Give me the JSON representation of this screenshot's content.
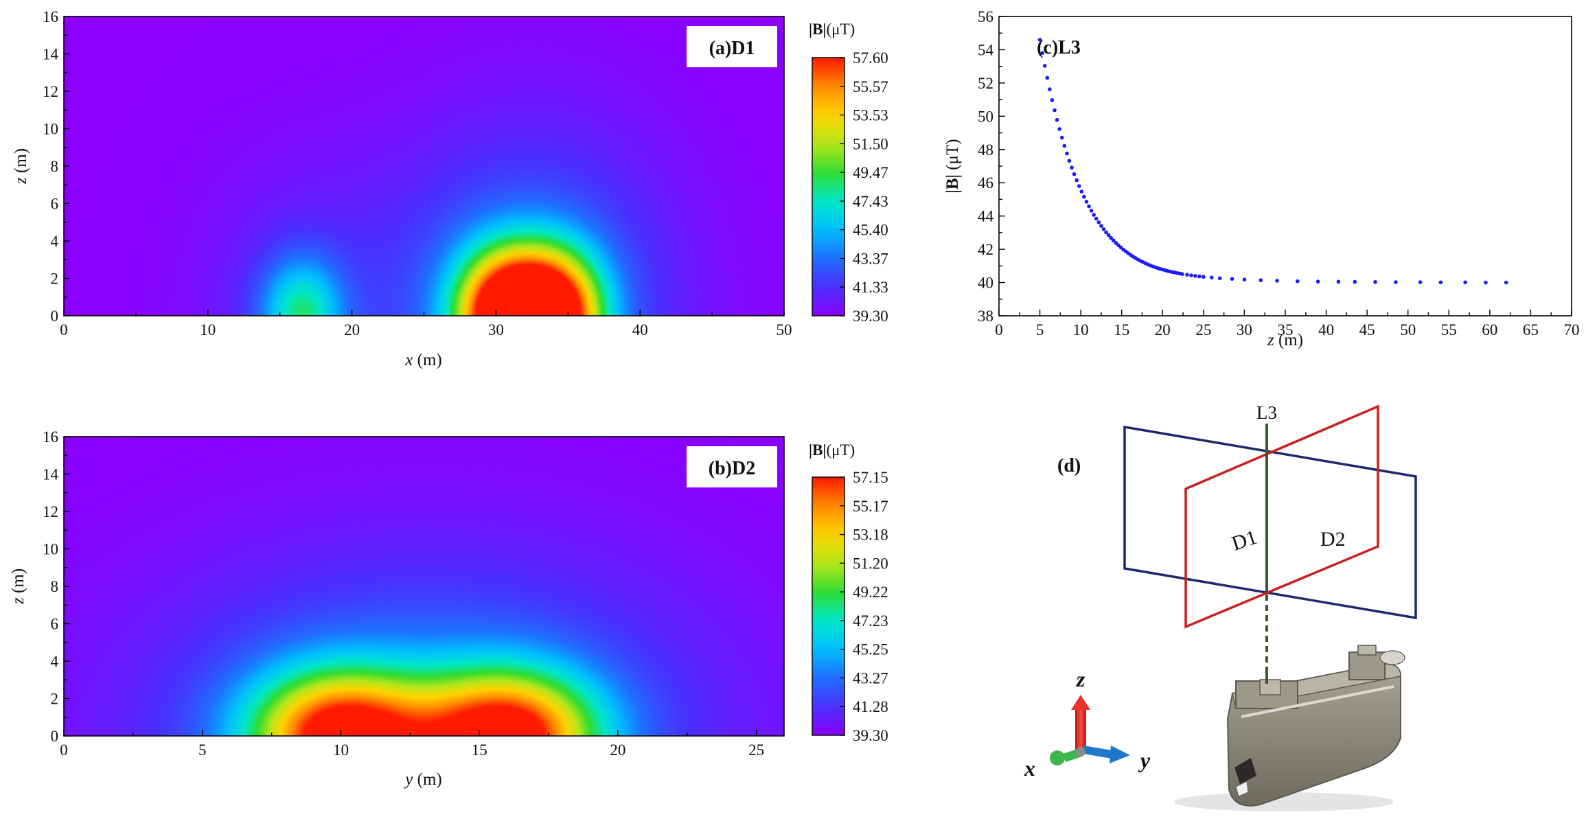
{
  "colormap": [
    "#8c00ff",
    "#4a30ff",
    "#1f6fff",
    "#00bfff",
    "#00e8c8",
    "#2fdc2f",
    "#b8e61a",
    "#ffd400",
    "#ff8a00",
    "#ff1a00"
  ],
  "chart_data": [
    {
      "id": "a",
      "type": "heatmap",
      "title": "(a)D1",
      "xlabel_var": "x",
      "xlabel_unit": " (m)",
      "ylabel_var": "z",
      "ylabel_unit": " (m)",
      "xlim": [
        0,
        50
      ],
      "ylim": [
        0,
        16
      ],
      "xticks": [
        "0",
        "10",
        "20",
        "30",
        "40",
        "50"
      ],
      "yticks": [
        "0",
        "2",
        "4",
        "6",
        "8",
        "10",
        "12",
        "14",
        "16"
      ],
      "colorbar_title_bold": "|B|",
      "colorbar_title_unit": "(μT)",
      "colorbar_ticks": [
        "57.60",
        "55.57",
        "53.53",
        "51.50",
        "49.47",
        "47.43",
        "45.40",
        "43.37",
        "41.33",
        "39.30"
      ],
      "vmin": 39.3,
      "vmax": 57.6,
      "sources": [
        {
          "x": 16.5,
          "z": 0,
          "sx": 2.8,
          "sz": 3.0,
          "amp": 7.5,
          "halo": 1.6
        },
        {
          "x": 30.5,
          "z": 0,
          "sx": 3.4,
          "sz": 3.4,
          "amp": 17.5,
          "halo": 2.4
        },
        {
          "x": 34.0,
          "z": 0,
          "sx": 3.4,
          "sz": 3.4,
          "amp": 17.5,
          "halo": 2.4
        }
      ]
    },
    {
      "id": "b",
      "type": "heatmap",
      "title": "(b)D2",
      "xlabel_var": "y",
      "xlabel_unit": " (m)",
      "ylabel_var": "z",
      "ylabel_unit": " (m)",
      "xlim": [
        0,
        26
      ],
      "ylim": [
        0,
        16
      ],
      "xticks": [
        "0",
        "5",
        "10",
        "15",
        "20",
        "25"
      ],
      "yticks": [
        "0",
        "2",
        "4",
        "6",
        "8",
        "10",
        "12",
        "14",
        "16"
      ],
      "colorbar_title_bold": "|B|",
      "colorbar_title_unit": "(μT)",
      "colorbar_ticks": [
        "57.15",
        "55.17",
        "53.18",
        "51.20",
        "49.22",
        "47.23",
        "45.25",
        "43.27",
        "41.28",
        "39.30"
      ],
      "vmin": 39.3,
      "vmax": 57.15,
      "sources": [
        {
          "x": 10.0,
          "z": 0,
          "sx": 3.2,
          "sz": 3.4,
          "amp": 16.5,
          "halo": 2.6
        },
        {
          "x": 16.0,
          "z": 0,
          "sx": 3.2,
          "sz": 3.4,
          "amp": 16.5,
          "halo": 2.6
        }
      ]
    },
    {
      "id": "c",
      "type": "scatter",
      "title": "(c)L3",
      "xlabel_var": "z",
      "xlabel_unit": " (m)",
      "ylabel_bold": "|B|",
      "ylabel_unit": " (μT)",
      "xlim": [
        0,
        70
      ],
      "ylim": [
        38,
        56
      ],
      "xticks": [
        "0",
        "5",
        "10",
        "15",
        "20",
        "25",
        "30",
        "35",
        "40",
        "45",
        "50",
        "55",
        "60",
        "65",
        "70"
      ],
      "yticks": [
        "38",
        "40",
        "42",
        "44",
        "46",
        "48",
        "50",
        "52",
        "54",
        "56"
      ],
      "series": [
        {
          "name": "L3",
          "color": "#1a1aff",
          "x": [
            5.0,
            5.3,
            5.6,
            5.9,
            6.2,
            6.5,
            6.8,
            7.1,
            7.4,
            7.7,
            8.0,
            8.3,
            8.6,
            8.9,
            9.2,
            9.5,
            9.8,
            10.1,
            10.4,
            10.7,
            11.0,
            11.3,
            11.6,
            11.9,
            12.2,
            12.5,
            12.8,
            13.1,
            13.4,
            13.7,
            14.0,
            14.3,
            14.6,
            14.9,
            15.2,
            15.5,
            15.8,
            16.1,
            16.4,
            16.7,
            17.0,
            17.3,
            17.6,
            17.9,
            18.2,
            18.5,
            18.8,
            19.1,
            19.4,
            19.7,
            20.0,
            20.3,
            20.6,
            20.9,
            21.2,
            21.5,
            21.8,
            22.1,
            22.4,
            23.0,
            23.5,
            24.0,
            24.5,
            25.0,
            26.0,
            27.0,
            28.5,
            30.0,
            32.0,
            34.0,
            36.5,
            39.0,
            41.5,
            43.5,
            46.0,
            48.5,
            51.5,
            54.0,
            57.0,
            59.5,
            62.0
          ],
          "y": [
            54.6,
            53.8,
            53.03,
            52.31,
            51.62,
            50.97,
            50.36,
            49.78,
            49.23,
            48.71,
            48.22,
            47.76,
            47.32,
            46.91,
            46.52,
            46.15,
            45.8,
            45.47,
            45.16,
            44.86,
            44.58,
            44.32,
            44.07,
            43.84,
            43.62,
            43.41,
            43.21,
            43.02,
            42.85,
            42.68,
            42.53,
            42.38,
            42.24,
            42.11,
            41.98,
            41.87,
            41.76,
            41.66,
            41.56,
            41.47,
            41.38,
            41.3,
            41.23,
            41.16,
            41.09,
            41.03,
            40.97,
            40.92,
            40.87,
            40.82,
            40.78,
            40.74,
            40.7,
            40.66,
            40.63,
            40.6,
            40.57,
            40.54,
            40.51,
            40.47,
            40.43,
            40.4,
            40.37,
            40.34,
            40.3,
            40.26,
            40.22,
            40.18,
            40.14,
            40.11,
            40.08,
            40.06,
            40.05,
            40.04,
            40.03,
            40.02,
            40.02,
            40.01,
            40.01,
            40.0,
            40.0
          ]
        }
      ]
    }
  ],
  "diagram": {
    "panel_label": "(d)",
    "line_label": "L3",
    "plane1_label": "D1",
    "plane2_label": "D2",
    "axis_x": "x",
    "axis_y": "y",
    "axis_z": "z",
    "colors": {
      "d1": "#cc1e1e",
      "d2": "#1b2a6b",
      "l3": "#3b5a2a",
      "d2_text": "#2b6aa5",
      "axis_x": "#3cb54a",
      "axis_y": "#1f77c8",
      "axis_z": "#e8332a",
      "ship": "#8a8779"
    }
  }
}
